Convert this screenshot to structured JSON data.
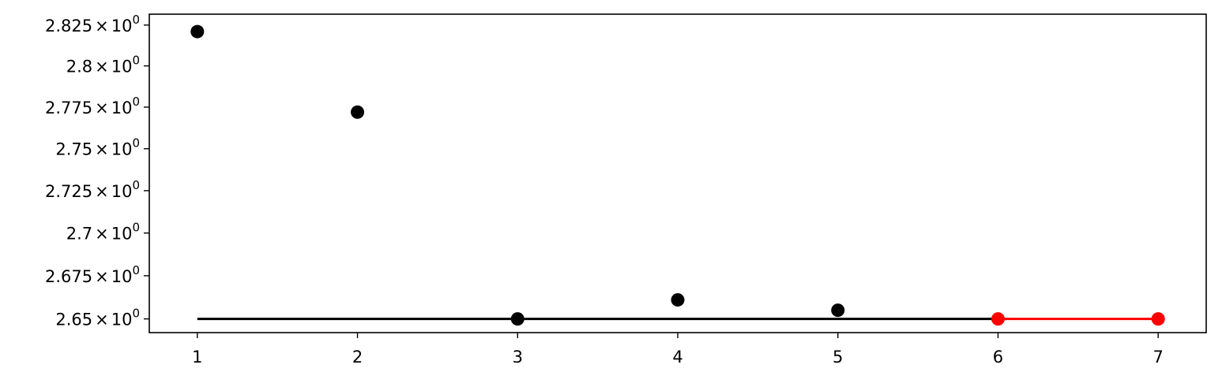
{
  "chart_data": {
    "type": "scatter",
    "title": "",
    "xlabel": "",
    "ylabel": "",
    "x_ticks": [
      1,
      2,
      3,
      4,
      5,
      6,
      7
    ],
    "x_tick_labels": [
      "1",
      "2",
      "3",
      "4",
      "5",
      "6",
      "7"
    ],
    "xlim": [
      0.7,
      7.3
    ],
    "y_scale": "log",
    "y_ticks": [
      2.65,
      2.675,
      2.7,
      2.725,
      2.75,
      2.775,
      2.8,
      2.825
    ],
    "y_tick_mantissas": [
      "2.65",
      "2.675",
      "2.7",
      "2.725",
      "2.75",
      "2.775",
      "2.8",
      "2.825"
    ],
    "y_tick_times": "×",
    "y_tick_base": "10",
    "y_tick_exponent": "0",
    "ylim": [
      2.6421,
      2.8317
    ],
    "grid": false,
    "series": [
      {
        "x": [
          1,
          2,
          3,
          4,
          5
        ],
        "y": [
          2.821,
          2.772,
          2.65,
          2.661,
          2.655
        ],
        "color": "#000000",
        "style": "markers"
      },
      {
        "x": [
          6,
          7
        ],
        "y": [
          2.65,
          2.65
        ],
        "color": "#ff0000",
        "style": "line+markers"
      }
    ],
    "reference_lines": [
      {
        "x": [
          1,
          6
        ],
        "y": [
          2.65,
          2.65
        ],
        "color": "#000000"
      }
    ]
  }
}
